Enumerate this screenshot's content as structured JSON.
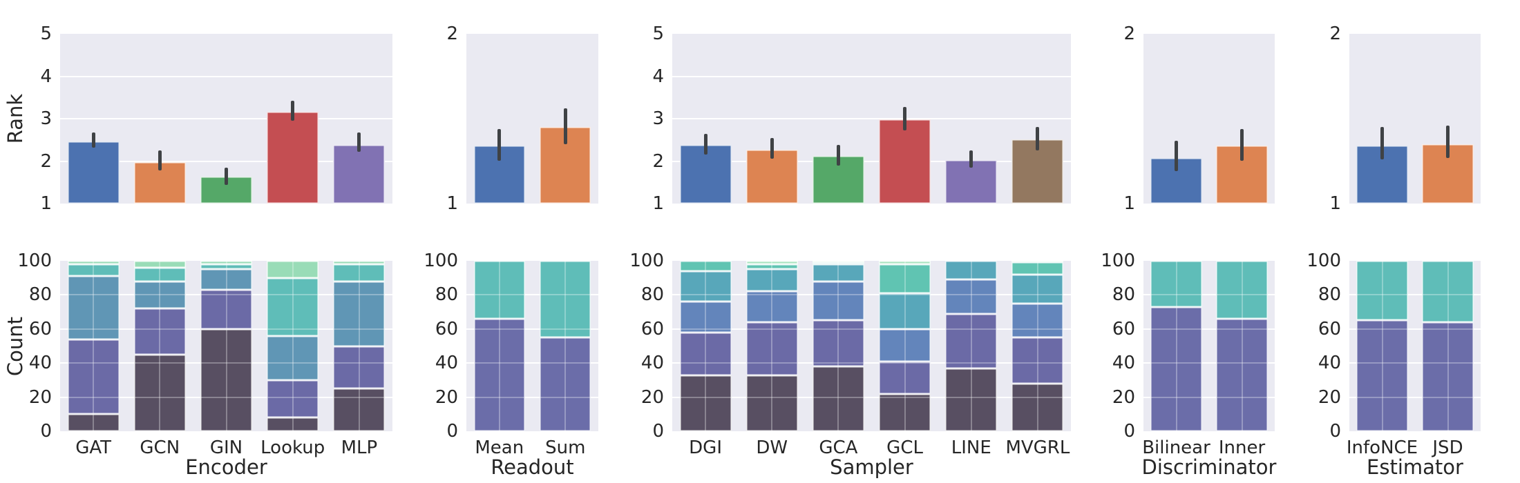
{
  "figure": {
    "row_labels": {
      "top": "Rank",
      "bottom": "Count"
    },
    "colors": {
      "plot_background": "#eaeaf2",
      "grid": "#ffffff",
      "text": "#262626",
      "error_bar": "#3f4245",
      "bar_palette": [
        "#4c72b0",
        "#dd8452",
        "#55a868",
        "#c44e52",
        "#8172b3",
        "#937860"
      ],
      "stack_palette_2": [
        "#6b6da9",
        "#5fbdb8"
      ],
      "stack_palette_5": [
        "#584f62",
        "#6b6aa6",
        "#6096b5",
        "#5fbdb8",
        "#99dcb7"
      ],
      "stack_palette_6": [
        "#584f62",
        "#6b6aa6",
        "#6385bb",
        "#58a7ba",
        "#60c4b2",
        "#a8e3c0"
      ]
    }
  },
  "chart_data": [
    {
      "panel": "Encoder",
      "categories": [
        "GAT",
        "GCN",
        "GIN",
        "Lookup",
        "MLP"
      ],
      "rank": {
        "type": "bar",
        "ylabel": "Rank",
        "ylim": [
          1,
          5
        ],
        "yticks": [
          1,
          2,
          3,
          4,
          5
        ],
        "values": [
          2.46,
          1.98,
          1.64,
          3.16,
          2.39
        ],
        "err": [
          [
            2.31,
            2.67
          ],
          [
            1.78,
            2.25
          ],
          [
            1.44,
            1.85
          ],
          [
            2.95,
            3.43
          ],
          [
            2.22,
            2.67
          ]
        ]
      },
      "count": {
        "type": "stacked-bar",
        "ylabel": "Count",
        "xlabel": "Encoder",
        "ylim": [
          0,
          100
        ],
        "yticks": [
          0,
          20,
          40,
          60,
          80,
          100
        ],
        "stacks": [
          [
            10,
            44,
            37,
            7,
            2
          ],
          [
            45,
            27,
            16,
            8,
            4
          ],
          [
            60,
            23,
            12,
            3,
            2
          ],
          [
            8,
            22,
            26,
            34,
            10
          ],
          [
            25,
            25,
            38,
            10,
            2
          ]
        ]
      }
    },
    {
      "panel": "Readout",
      "categories": [
        "Mean",
        "Sum"
      ],
      "rank": {
        "type": "bar",
        "ylabel": "Rank",
        "ylim": [
          1,
          2
        ],
        "yticks": [
          1,
          2
        ],
        "values": [
          1.34,
          1.45
        ],
        "err": [
          [
            1.25,
            1.44
          ],
          [
            1.35,
            1.56
          ]
        ]
      },
      "count": {
        "type": "stacked-bar",
        "ylabel": "Count",
        "xlabel": "Readout",
        "ylim": [
          0,
          100
        ],
        "yticks": [
          0,
          20,
          40,
          60,
          80,
          100
        ],
        "stacks": [
          [
            66,
            34
          ],
          [
            55,
            45
          ]
        ]
      }
    },
    {
      "panel": "Sampler",
      "categories": [
        "DGI",
        "DW",
        "GCA",
        "GCL",
        "LINE",
        "MVGRL"
      ],
      "rank": {
        "type": "bar",
        "ylabel": "Rank",
        "ylim": [
          1,
          5
        ],
        "yticks": [
          1,
          2,
          3,
          4,
          5
        ],
        "values": [
          2.38,
          2.27,
          2.12,
          2.98,
          2.03,
          2.52
        ],
        "err": [
          [
            2.16,
            2.64
          ],
          [
            2.05,
            2.55
          ],
          [
            1.89,
            2.39
          ],
          [
            2.72,
            3.28
          ],
          [
            1.84,
            2.26
          ],
          [
            2.25,
            2.8
          ]
        ]
      },
      "count": {
        "type": "stacked-bar",
        "ylabel": "Count",
        "xlabel": "Sampler",
        "ylim": [
          0,
          100
        ],
        "yticks": [
          0,
          20,
          40,
          60,
          80,
          100
        ],
        "stacks": [
          [
            33,
            25,
            18,
            18,
            6,
            0
          ],
          [
            33,
            31,
            18,
            13,
            3,
            2
          ],
          [
            38,
            27,
            23,
            10,
            1,
            1
          ],
          [
            22,
            19,
            19,
            21,
            17,
            2
          ],
          [
            37,
            32,
            20,
            11,
            0,
            0
          ],
          [
            28,
            27,
            20,
            17,
            7,
            1
          ]
        ]
      }
    },
    {
      "panel": "Discriminator",
      "categories": [
        "Bilinear",
        "Inner"
      ],
      "rank": {
        "type": "bar",
        "ylabel": "Rank",
        "ylim": [
          1,
          2
        ],
        "yticks": [
          1,
          2
        ],
        "values": [
          1.27,
          1.34
        ],
        "err": [
          [
            1.19,
            1.37
          ],
          [
            1.25,
            1.44
          ]
        ]
      },
      "count": {
        "type": "stacked-bar",
        "ylabel": "Count",
        "xlabel": "Discriminator",
        "ylim": [
          0,
          100
        ],
        "yticks": [
          0,
          20,
          40,
          60,
          80,
          100
        ],
        "stacks": [
          [
            73,
            27
          ],
          [
            66,
            34
          ]
        ]
      }
    },
    {
      "panel": "Estimator",
      "categories": [
        "InfoNCE",
        "JSD"
      ],
      "rank": {
        "type": "bar",
        "ylabel": "Rank",
        "ylim": [
          1,
          2
        ],
        "yticks": [
          1,
          2
        ],
        "values": [
          1.34,
          1.35
        ],
        "err": [
          [
            1.26,
            1.45
          ],
          [
            1.27,
            1.46
          ]
        ]
      },
      "count": {
        "type": "stacked-bar",
        "ylabel": "Count",
        "xlabel": "Estimator",
        "ylim": [
          0,
          100
        ],
        "yticks": [
          0,
          20,
          40,
          60,
          80,
          100
        ],
        "stacks": [
          [
            65,
            35
          ],
          [
            64,
            36
          ]
        ]
      }
    }
  ]
}
